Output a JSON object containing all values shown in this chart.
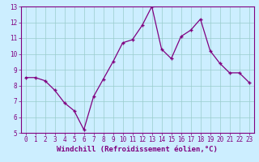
{
  "x": [
    0,
    1,
    2,
    3,
    4,
    5,
    6,
    7,
    8,
    9,
    10,
    11,
    12,
    13,
    14,
    15,
    16,
    17,
    18,
    19,
    20,
    21,
    22,
    23
  ],
  "y": [
    8.5,
    8.5,
    8.3,
    7.7,
    6.9,
    6.4,
    5.2,
    7.3,
    8.4,
    9.5,
    10.7,
    10.9,
    11.8,
    13.0,
    10.3,
    9.7,
    11.1,
    11.5,
    12.2,
    10.2,
    9.4,
    8.8,
    8.8,
    8.2
  ],
  "line_color": "#800080",
  "marker": "+",
  "marker_color": "#800080",
  "bg_color": "#cceeff",
  "grid_color": "#99cccc",
  "xlabel": "Windchill (Refroidissement éolien,°C)",
  "xlabel_color": "#800080",
  "tick_color": "#800080",
  "spine_color": "#800080",
  "xlim": [
    -0.5,
    23.5
  ],
  "ylim": [
    5,
    13
  ],
  "xticks": [
    0,
    1,
    2,
    3,
    4,
    5,
    6,
    7,
    8,
    9,
    10,
    11,
    12,
    13,
    14,
    15,
    16,
    17,
    18,
    19,
    20,
    21,
    22,
    23
  ],
  "yticks": [
    5,
    6,
    7,
    8,
    9,
    10,
    11,
    12,
    13
  ],
  "tick_fontsize": 5.5,
  "xlabel_fontsize": 6.5
}
